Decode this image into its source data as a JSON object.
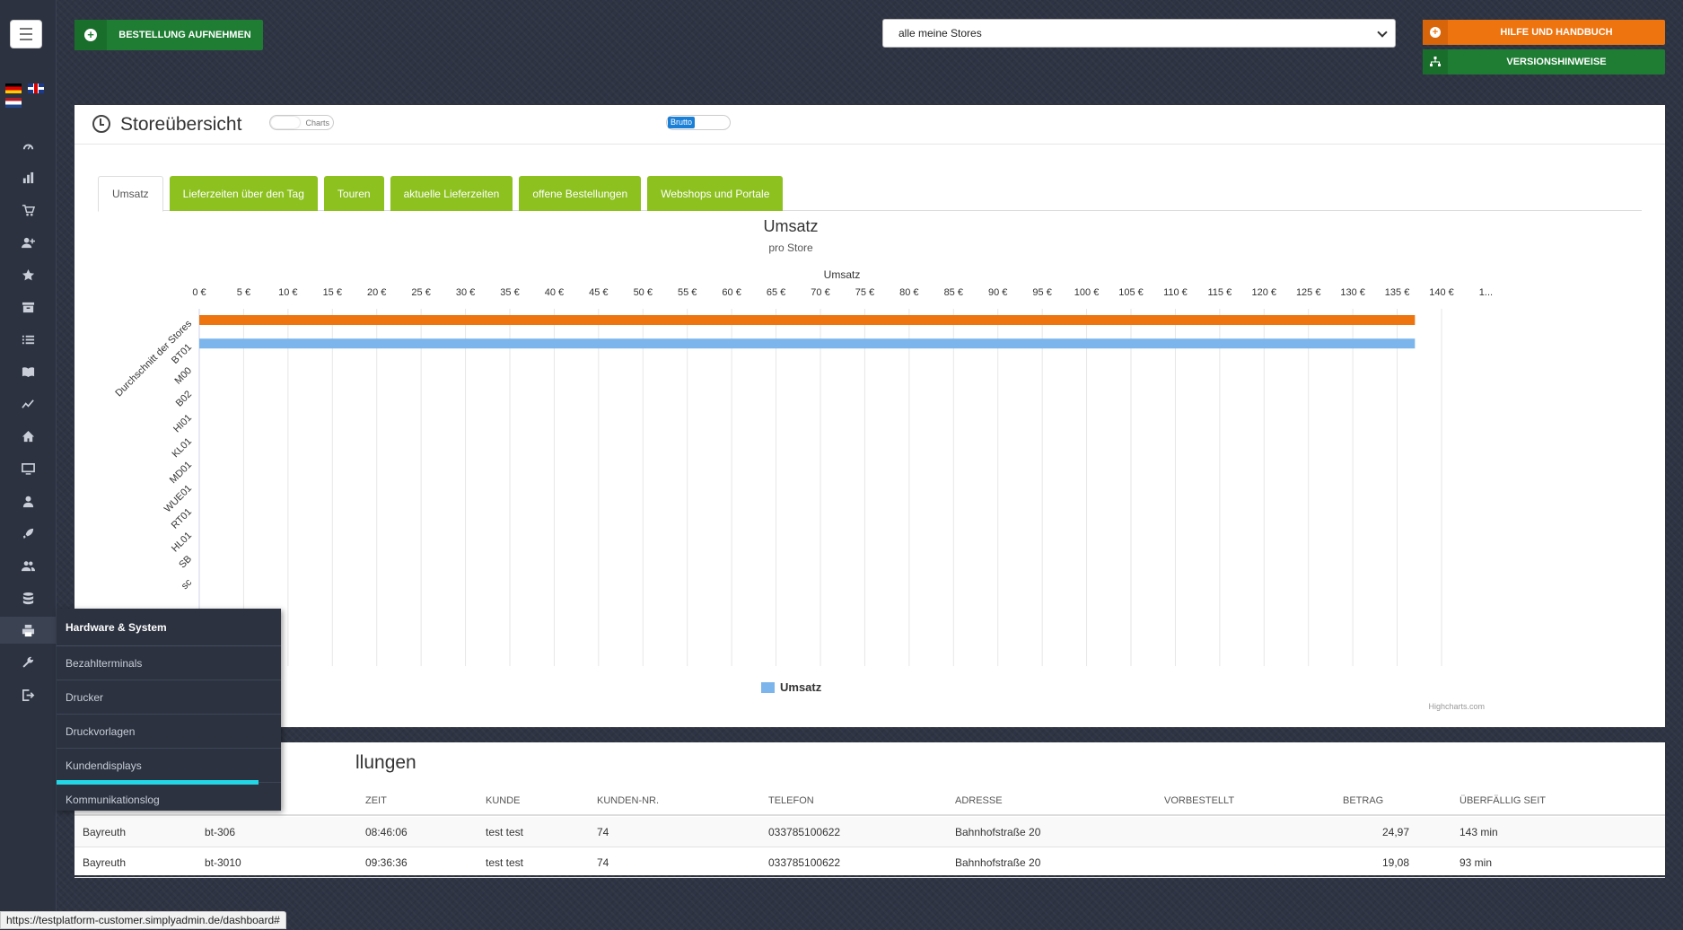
{
  "header": {
    "order_button": "BESTELLUNG AUFNEHMEN",
    "store_select": "alle meine Stores",
    "help_button": "HILFE UND HANDBUCH",
    "version_button": "VERSIONSHINWEISE"
  },
  "sidebar": {
    "icons": [
      "dashboard-icon",
      "bar-chart-icon",
      "cart-icon",
      "user-plus-icon",
      "star-icon",
      "archive-icon",
      "list-icon",
      "book-icon",
      "line-chart-icon",
      "home-icon",
      "monitor-icon",
      "user-icon",
      "rocket-icon",
      "users-icon",
      "database-icon",
      "printer-icon",
      "wrench-icon",
      "logout-icon"
    ]
  },
  "flyout": {
    "title": "Hardware & System",
    "items": [
      "Bezahlterminals",
      "Drucker",
      "Druckvorlagen",
      "Kundendisplays",
      "Kommunikationslog"
    ]
  },
  "panel": {
    "title": "Storeübersicht",
    "toggle_charts": "Charts",
    "toggle_brutto": "Brutto",
    "tabs": [
      "Umsatz",
      "Lieferzeiten über den Tag",
      "Touren",
      "aktuelle Lieferzeiten",
      "offene Bestellungen",
      "Webshops und Portale"
    ]
  },
  "chart_data": {
    "type": "bar",
    "orientation": "horizontal",
    "title": "Umsatz",
    "subtitle": "pro Store",
    "xlabel": "Umsatz",
    "x_ticks": [
      "0 €",
      "5 €",
      "10 €",
      "15 €",
      "20 €",
      "25 €",
      "30 €",
      "35 €",
      "40 €",
      "45 €",
      "50 €",
      "55 €",
      "60 €",
      "65 €",
      "70 €",
      "75 €",
      "80 €",
      "85 €",
      "90 €",
      "95 €",
      "100 €",
      "105 €",
      "110 €",
      "115 €",
      "120 €",
      "125 €",
      "130 €",
      "135 €",
      "140 €",
      "1..."
    ],
    "xlim": [
      0,
      145
    ],
    "categories": [
      "Durchschnitt der Stores",
      "BT01",
      "M00",
      "B02",
      "HI01",
      "KL01",
      "MD01",
      "WUE01",
      "RT01",
      "HL01",
      "SB",
      "sc"
    ],
    "bars": [
      {
        "category": "Durchschnitt der Stores",
        "value": 137,
        "color": "#ee7410"
      },
      {
        "category": "BT01",
        "value": 137,
        "color": "#7cb5ec"
      }
    ],
    "legend": "Umsatz",
    "legend_color": "#7cb5ec",
    "credits": "Highcharts.com"
  },
  "orders": {
    "title": "llungen",
    "columns": [
      "ZEIT",
      "KUNDE",
      "KUNDEN-NR.",
      "TELEFON",
      "ADRESSE",
      "VORBESTELLT",
      "BETRAG",
      "ÜBERFÄLLIG SEIT"
    ],
    "rows": [
      {
        "store": "Bayreuth",
        "order": "bt-306",
        "time": "08:46:06",
        "customer": "test test",
        "customer_no": "74",
        "phone": "033785100622",
        "address": "Bahnhofstraße 20",
        "preordered": "",
        "amount": "24,97",
        "overdue": "143 min"
      },
      {
        "store": "Bayreuth",
        "order": "bt-3010",
        "time": "09:36:36",
        "customer": "test test",
        "customer_no": "74",
        "phone": "033785100622",
        "address": "Bahnhofstraße 20",
        "preordered": "",
        "amount": "19,08",
        "overdue": "93 min"
      }
    ]
  },
  "statusbar": "https://testplatform-customer.simplyadmin.de/dashboard#"
}
